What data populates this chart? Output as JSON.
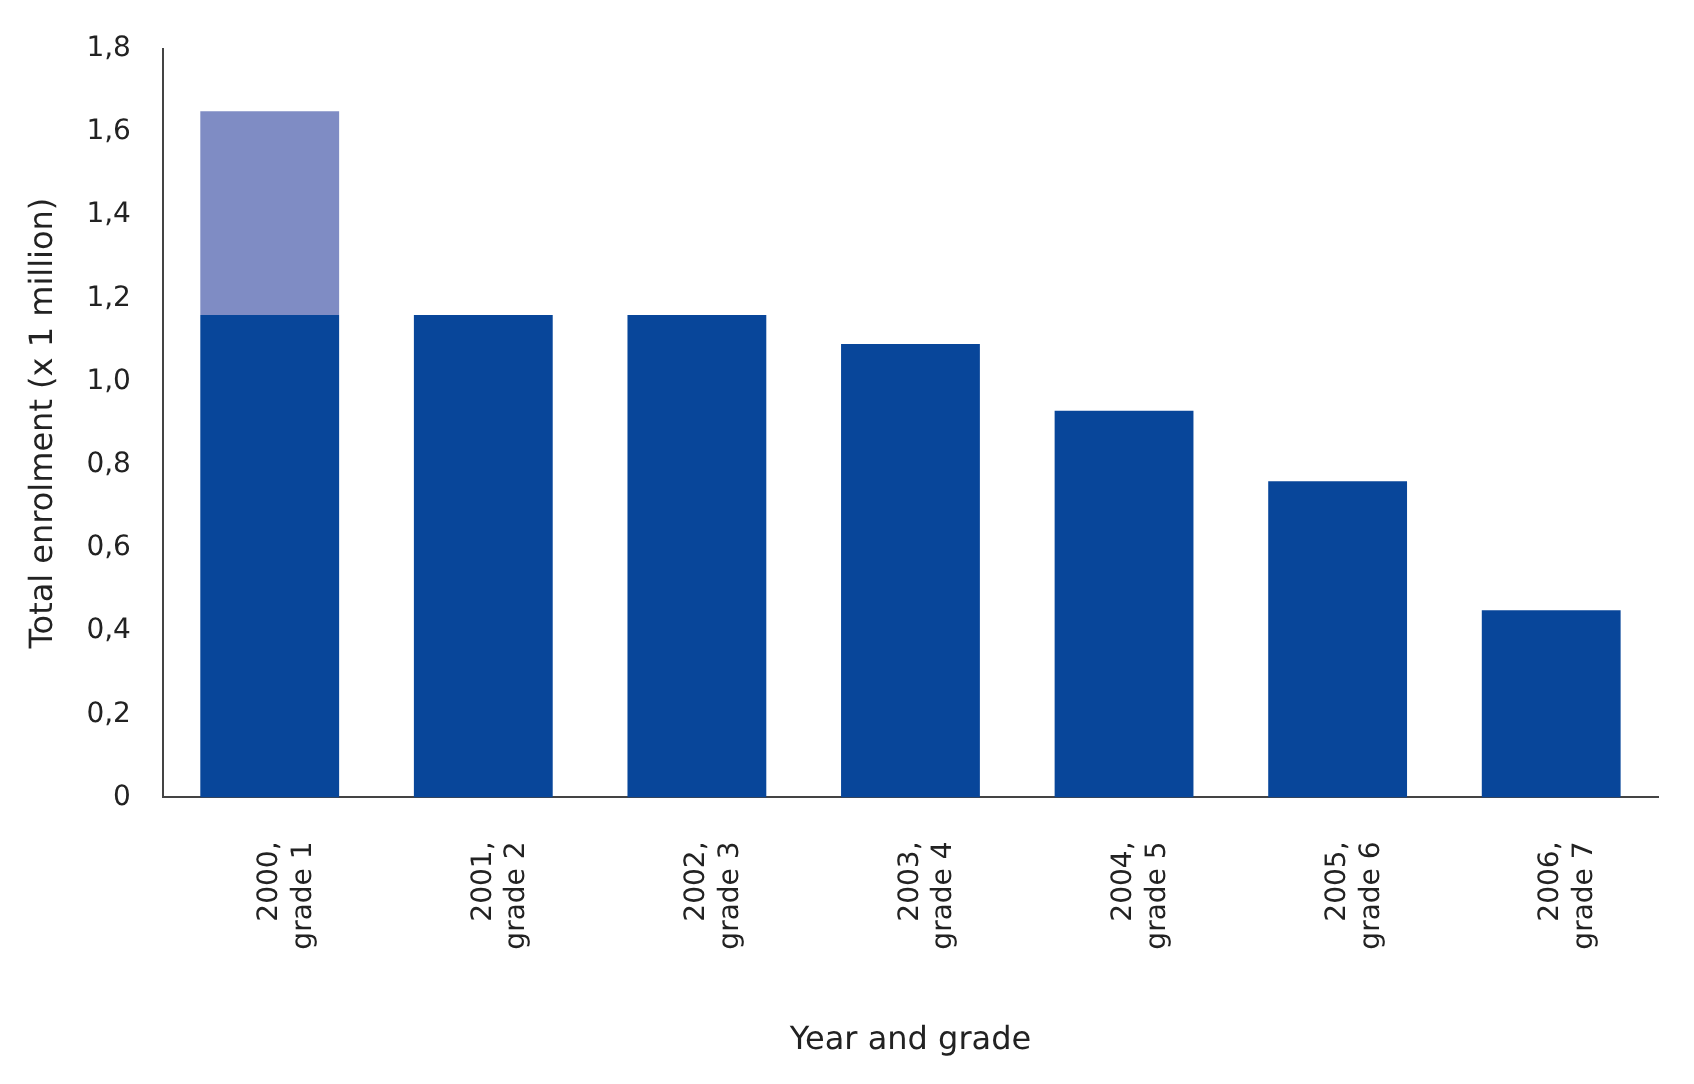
{
  "chart_data": {
    "type": "bar",
    "stacked": true,
    "xlabel": "Year and grade",
    "ylabel": "Total enrolment (x 1 million)",
    "categories": [
      "2000,\ngrade 1",
      "2001,\ngrade 2",
      "2002,\ngrade 3",
      "2003,\ngrade 4",
      "2004,\ngrade 5",
      "2005,\ngrade 6",
      "2006,\ngrade 7"
    ],
    "series": [
      {
        "color": "#08469a",
        "values": [
          1.16,
          1.16,
          1.16,
          1.09,
          0.93,
          0.76,
          0.45
        ]
      },
      {
        "color": "#7f8cc4",
        "values": [
          0.49,
          null,
          null,
          null,
          null,
          null,
          null
        ]
      }
    ],
    "ylim": [
      0,
      1.8
    ],
    "yticks": [
      0,
      {
        "value": 0.2,
        "label": "0,2"
      },
      {
        "value": 0.4,
        "label": "0,4"
      },
      {
        "value": 0.6,
        "label": "0,6"
      },
      {
        "value": 0.8,
        "label": "0,8"
      },
      {
        "value": 1,
        "label": "1,0"
      },
      {
        "value": 1.2,
        "label": "1,2"
      },
      {
        "value": 1.4,
        "label": "1,4"
      },
      {
        "value": 1.6,
        "label": "1,6"
      },
      {
        "value": 1.8,
        "label": "1,8"
      }
    ],
    "grid": false,
    "legend": false
  }
}
